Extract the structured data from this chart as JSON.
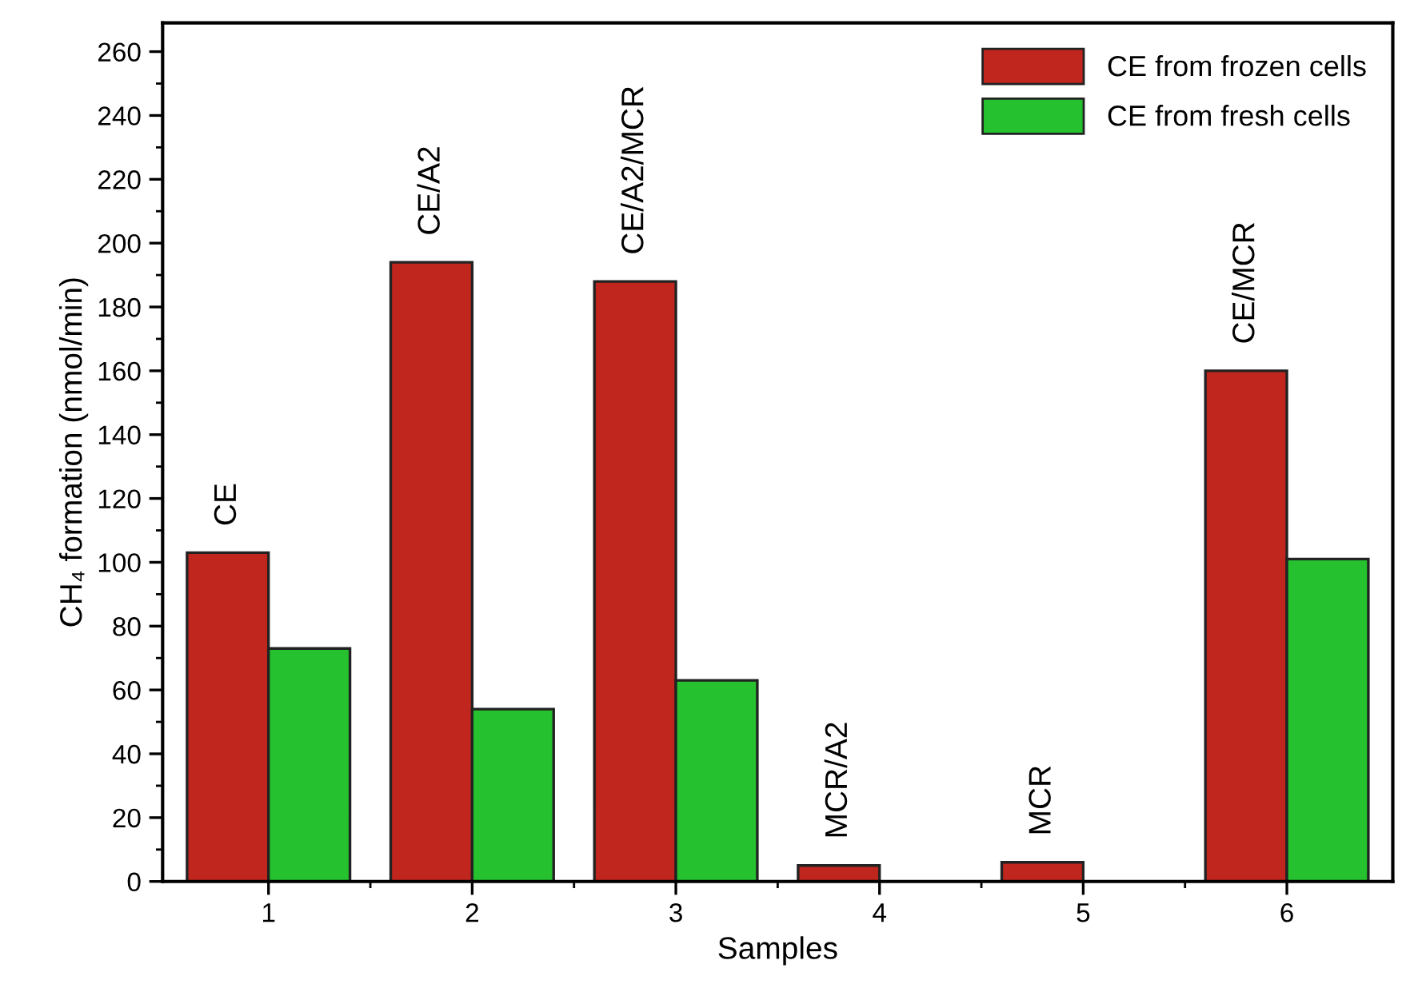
{
  "chart_data": {
    "type": "bar",
    "xlabel": "Samples",
    "ylabel": "CH₄ formation (nmol/min)",
    "categories": [
      "1",
      "2",
      "3",
      "4",
      "5",
      "6"
    ],
    "series": [
      {
        "name": "CE from frozen cells",
        "color": "#c0261d",
        "values": [
          103,
          194,
          188,
          5,
          6,
          160
        ]
      },
      {
        "name": "CE from fresh cells",
        "color": "#25c12f",
        "values": [
          73,
          54,
          63,
          null,
          null,
          101
        ]
      }
    ],
    "ylim": [
      0,
      269
    ],
    "yticks": [
      0,
      20,
      40,
      60,
      80,
      100,
      120,
      140,
      160,
      180,
      200,
      220,
      240,
      260
    ],
    "grid": false,
    "legend": "top right",
    "annotations": [
      {
        "text": "CE",
        "x": "1",
        "y": 103
      },
      {
        "text": "CE/A2",
        "x": "2",
        "y": 194
      },
      {
        "text": "CE/A2/MCR",
        "x": "3",
        "y": 188
      },
      {
        "text": "MCR/A2",
        "x": "4",
        "y": 5
      },
      {
        "text": "MCR",
        "x": "5",
        "y": 6
      },
      {
        "text": "CE/MCR",
        "x": "6",
        "y": 160
      }
    ]
  }
}
